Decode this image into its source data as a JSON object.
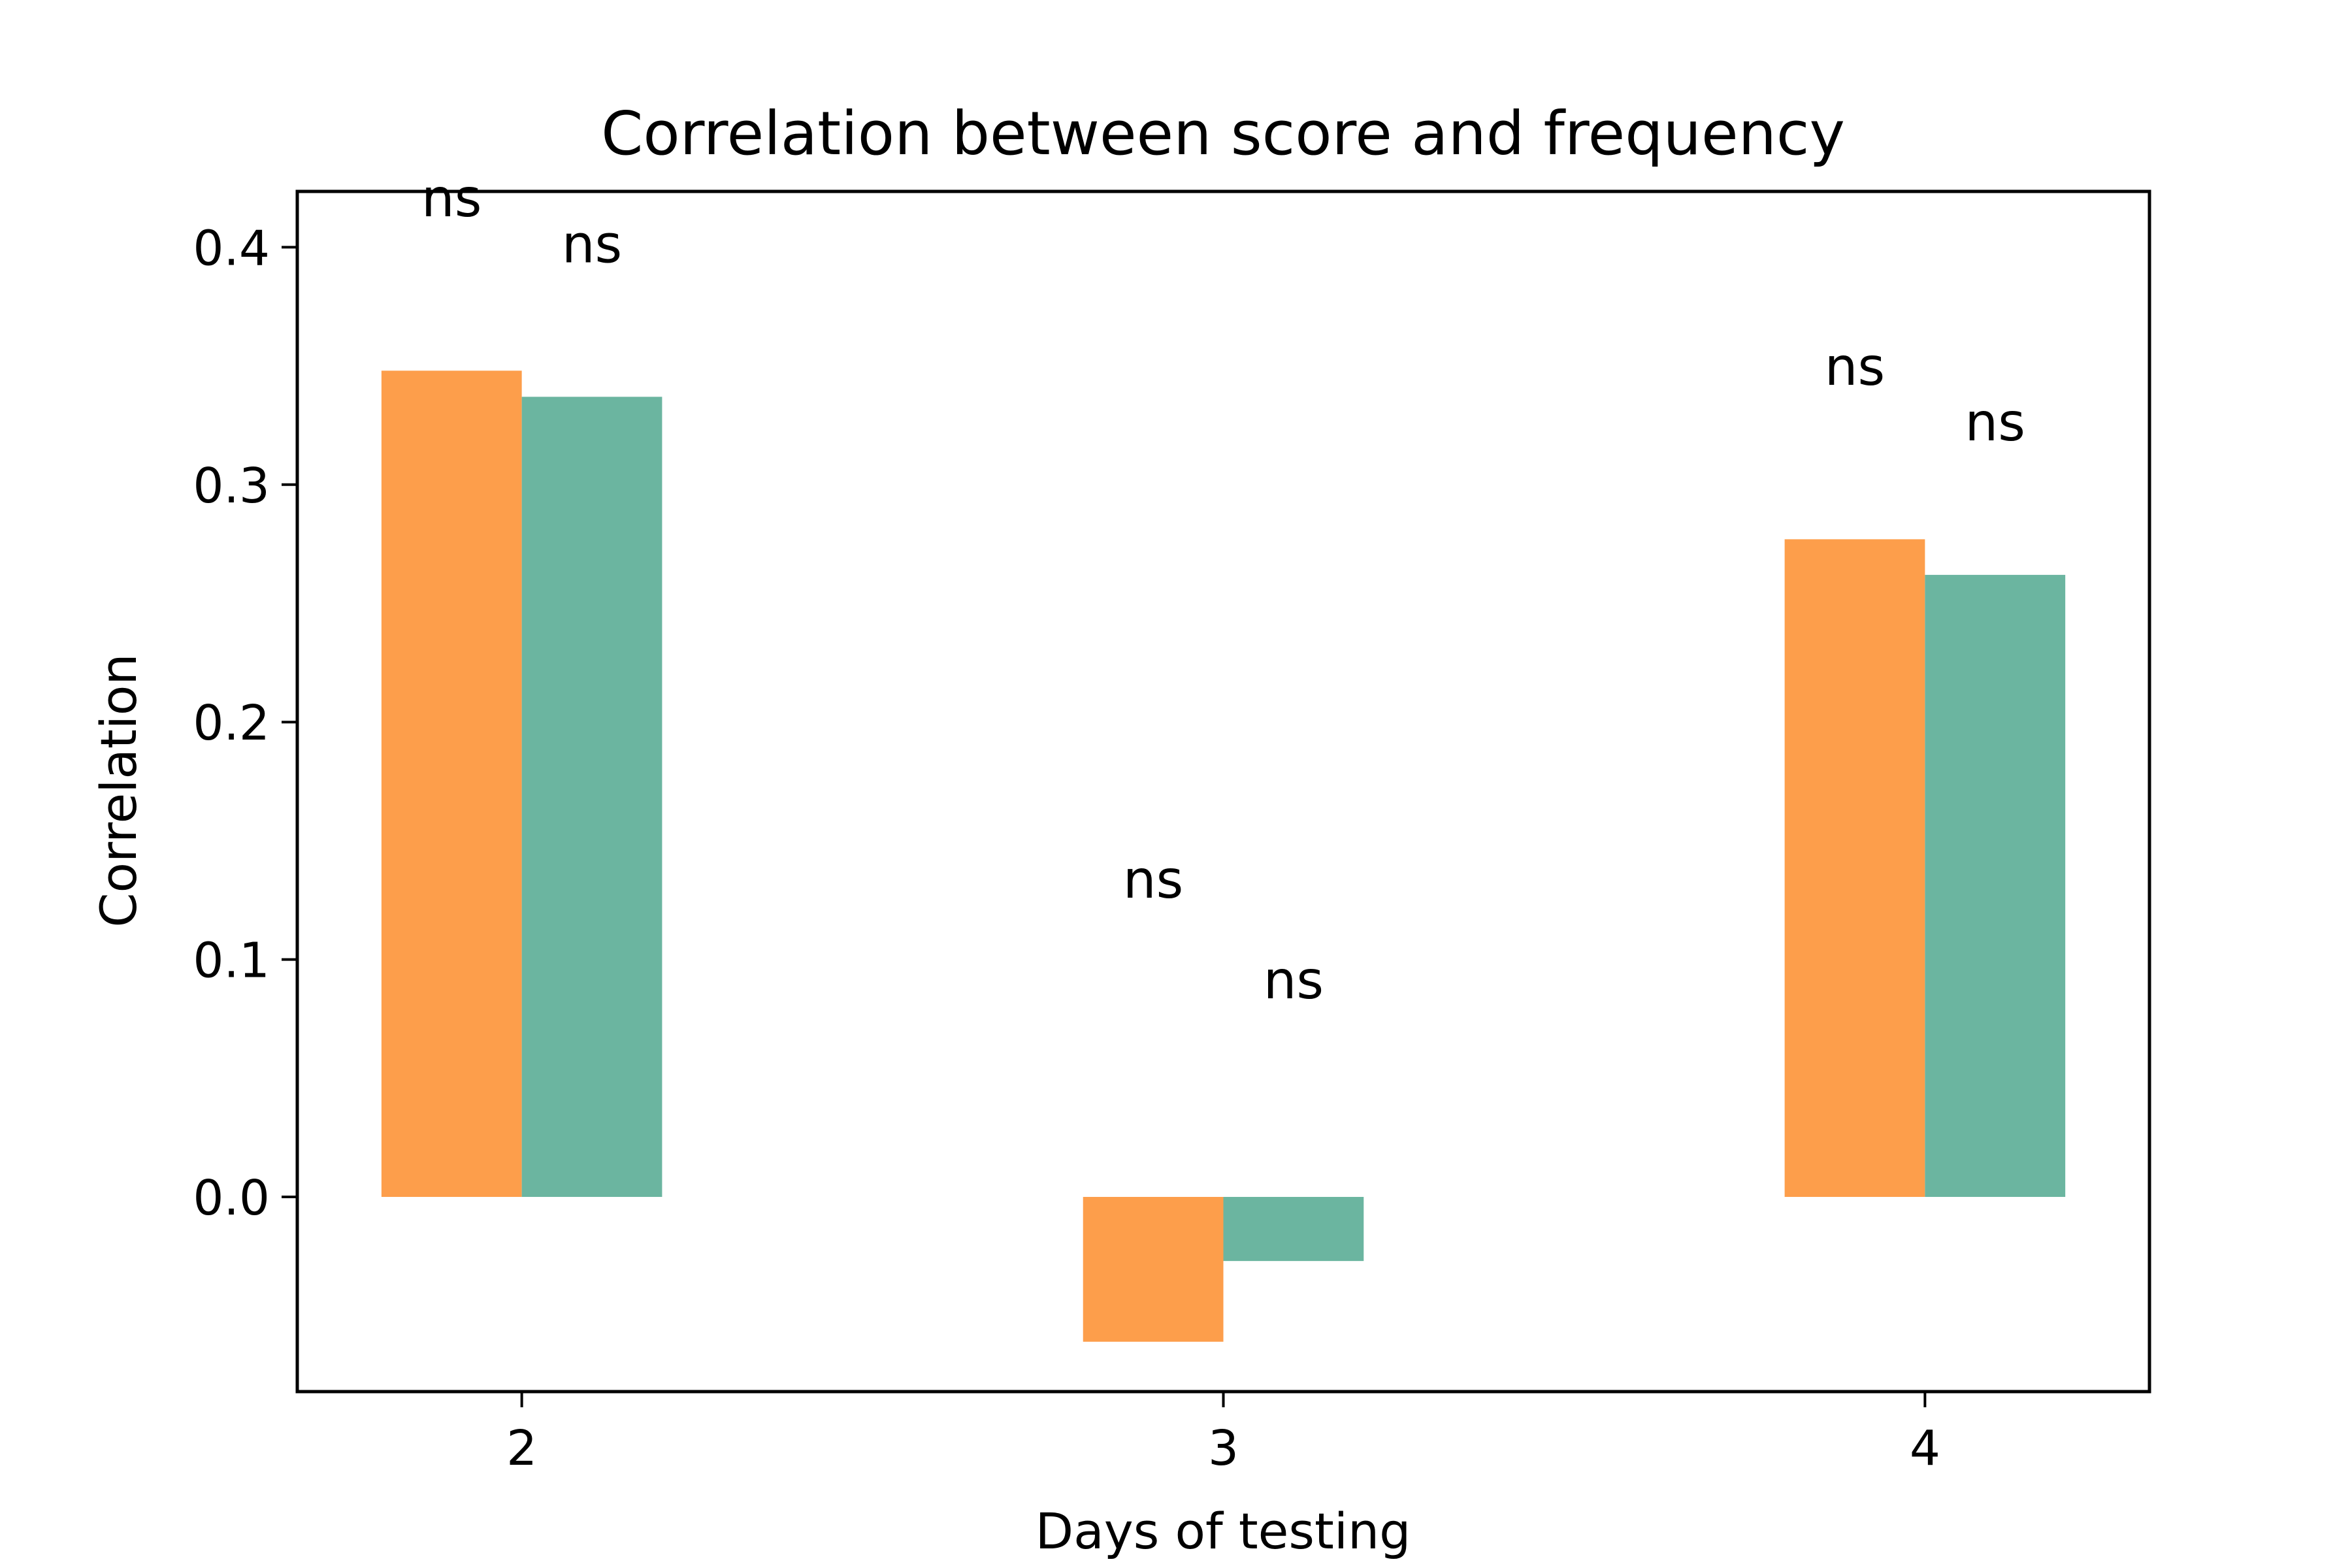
{
  "chart_data": {
    "type": "bar",
    "title": "Correlation between score and frequency",
    "xlabel": "Days of testing",
    "ylabel": "Correlation",
    "categories": [
      "2",
      "3",
      "4"
    ],
    "series": [
      {
        "values": [
          0.348,
          -0.061,
          0.277
        ],
        "annotations": [
          "ns",
          "ns",
          "ns"
        ]
      },
      {
        "values": [
          0.337,
          -0.027,
          0.262
        ],
        "annotations": [
          "ns",
          "ns",
          "ns"
        ]
      }
    ],
    "colors": [
      "#fd9e4b",
      "#6bb5a0"
    ],
    "ylim": [
      -0.082,
      0.4235
    ],
    "yticks": [
      0.0,
      0.1,
      0.2,
      0.3,
      0.4
    ],
    "ytick_labels": [
      "0.0",
      "0.1",
      "0.2",
      "0.3",
      "0.4"
    ],
    "grid": false,
    "legend": false
  }
}
